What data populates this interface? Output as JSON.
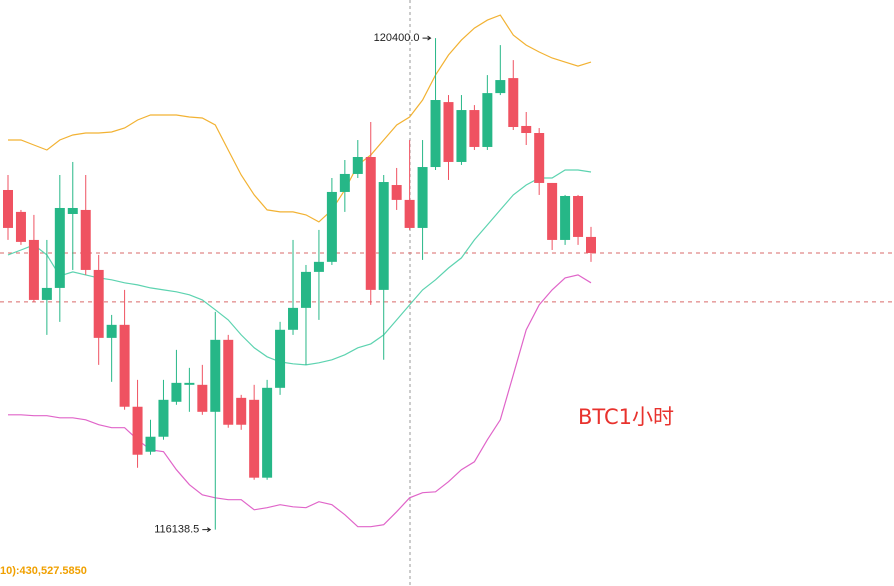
{
  "chart_data": {
    "type": "candlestick",
    "title": "BTC1小时",
    "indicator_text": "10):430,527.5850",
    "max_label": "120400.0",
    "min_label": "116138.5",
    "up_color": "#26b787",
    "down_color": "#ef5261",
    "ylim": [
      115650,
      120730
    ],
    "reference_lines": [
      118537,
      118113
    ],
    "open": [
      119083,
      118893,
      118650,
      118130,
      118234,
      118875,
      118910,
      118390,
      117801,
      117914,
      117204,
      116814,
      116944,
      117247,
      117394,
      117394,
      117160,
      117784,
      117281,
      117264,
      116589,
      117368,
      117871,
      118061,
      118373,
      118460,
      119066,
      119222,
      119369,
      118217,
      119126,
      118997,
      118754,
      119282,
      119845,
      119326,
      119776,
      119456,
      119923,
      120053,
      119638,
      119577,
      119144,
      118650,
      119031,
      118676
    ],
    "high": [
      119213,
      118910,
      118867,
      118650,
      119213,
      119326,
      119213,
      118520,
      118000,
      118217,
      117437,
      117091,
      117437,
      117697,
      117541,
      117567,
      118026,
      117827,
      117307,
      117394,
      117437,
      117940,
      118650,
      118433,
      118737,
      119187,
      119343,
      119516,
      119672,
      119213,
      119274,
      119516,
      119516,
      120400,
      119906,
      119906,
      119819,
      120079,
      120339,
      120209,
      119759,
      119620,
      119144,
      119040,
      119040,
      118763
    ],
    "low": [
      118650,
      118607,
      118113,
      117827,
      117940,
      118390,
      118347,
      117567,
      117420,
      117178,
      116675,
      116788,
      116918,
      117221,
      117160,
      117134,
      116138.5,
      117022,
      117004,
      116571,
      116571,
      117307,
      117827,
      117567,
      117957,
      118433,
      118893,
      119187,
      118087,
      117611,
      118910,
      118737,
      118477,
      119256,
      119170,
      119300,
      119430,
      119430,
      119906,
      119603,
      119473,
      119040,
      118563,
      118607,
      118607,
      118460
    ],
    "close": [
      118754,
      118633,
      118130,
      118234,
      118927,
      118927,
      118390,
      117801,
      117914,
      117204,
      116788,
      116944,
      117264,
      117411,
      117411,
      117160,
      117784,
      117048,
      117048,
      116589,
      117368,
      117871,
      118061,
      118373,
      118460,
      119066,
      119222,
      119369,
      118217,
      119152,
      118997,
      118754,
      119282,
      119863,
      119326,
      119776,
      119456,
      119923,
      120036,
      119629,
      119577,
      119144,
      118650,
      119031,
      118676,
      118537
    ],
    "lines": [
      {
        "color": "#f2b233",
        "values": [
          119516,
          119516,
          119473,
          119430,
          119516,
          119560,
          119577,
          119577,
          119586,
          119620,
          119690,
          119733,
          119733,
          119733,
          119716,
          119707,
          119646,
          119430,
          119213,
          119040,
          118910,
          118893,
          118893,
          118867,
          118806,
          118910,
          119083,
          119300,
          119386,
          119516,
          119646,
          119716,
          119863,
          120079,
          120253,
          120382,
          120486,
          120556,
          120599,
          120426,
          120339,
          120279,
          120227,
          120192,
          120157,
          120192
        ]
      },
      {
        "color": "#5dd3b0",
        "values": [
          118520,
          118563,
          118607,
          118520,
          118338,
          118373,
          118347,
          118321,
          118304,
          118278,
          118260,
          118234,
          118217,
          118200,
          118174,
          118130,
          118044,
          117957,
          117827,
          117715,
          117637,
          117593,
          117576,
          117567,
          117585,
          117611,
          117654,
          117715,
          117749,
          117827,
          117957,
          118087,
          118217,
          118304,
          118407,
          118494,
          118650,
          118780,
          118910,
          119040,
          119126,
          119187,
          119187,
          119256,
          119256,
          119239
        ]
      },
      {
        "color": "#e065c9",
        "values": [
          117134,
          117134,
          117126,
          117126,
          117108,
          117108,
          117091,
          117048,
          117022,
          117022,
          116918,
          116831,
          116814,
          116658,
          116528,
          116441,
          116415,
          116398,
          116398,
          116311,
          116329,
          116355,
          116337,
          116329,
          116381,
          116355,
          116268,
          116164,
          116164,
          116181,
          116294,
          116415,
          116459,
          116467,
          116554,
          116658,
          116727,
          116918,
          117091,
          117481,
          117871,
          118087,
          118217,
          118321,
          118347,
          118278
        ]
      }
    ]
  }
}
